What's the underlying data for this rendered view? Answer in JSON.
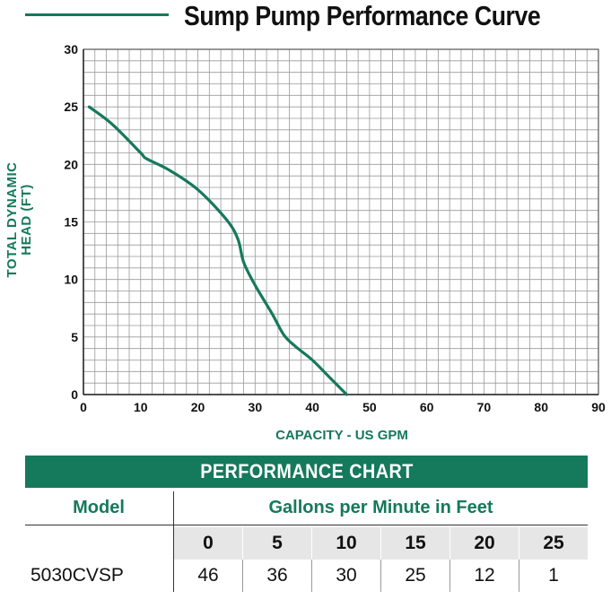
{
  "chart_data": {
    "type": "line",
    "title": "Sump Pump Performance Curve",
    "xlabel": "CAPACITY - US GPM",
    "ylabel_lines": [
      "TOTAL DYNAMIC",
      "HEAD (FT)"
    ],
    "xlim": [
      0,
      90
    ],
    "ylim": [
      0,
      30
    ],
    "x_ticks": [
      0,
      10,
      20,
      30,
      40,
      50,
      60,
      70,
      80,
      90
    ],
    "y_ticks": [
      0,
      5,
      10,
      15,
      20,
      25,
      30
    ],
    "grid": true,
    "series": [
      {
        "color": "#15795b",
        "x": [
          1,
          5,
          10,
          11,
          15,
          20,
          25,
          27,
          28,
          30,
          33,
          35,
          37,
          40,
          43,
          46
        ],
        "y": [
          25,
          23.5,
          21,
          20.5,
          19.5,
          17.8,
          15.2,
          13.5,
          11.5,
          9.5,
          7,
          5.2,
          4.2,
          3,
          1.5,
          0
        ]
      }
    ]
  },
  "performance_chart": {
    "heading": "PERFORMANCE CHART",
    "model_header": "Model",
    "gpm_header": "Gallons per Minute in Feet",
    "feet": [
      "0",
      "5",
      "10",
      "15",
      "20",
      "25"
    ],
    "rows": [
      {
        "model": "5030CVSP",
        "values": [
          "46",
          "36",
          "30",
          "25",
          "12",
          "1"
        ]
      }
    ]
  },
  "colors": {
    "accent": "#15795b",
    "grid": "#9a9a9a"
  }
}
